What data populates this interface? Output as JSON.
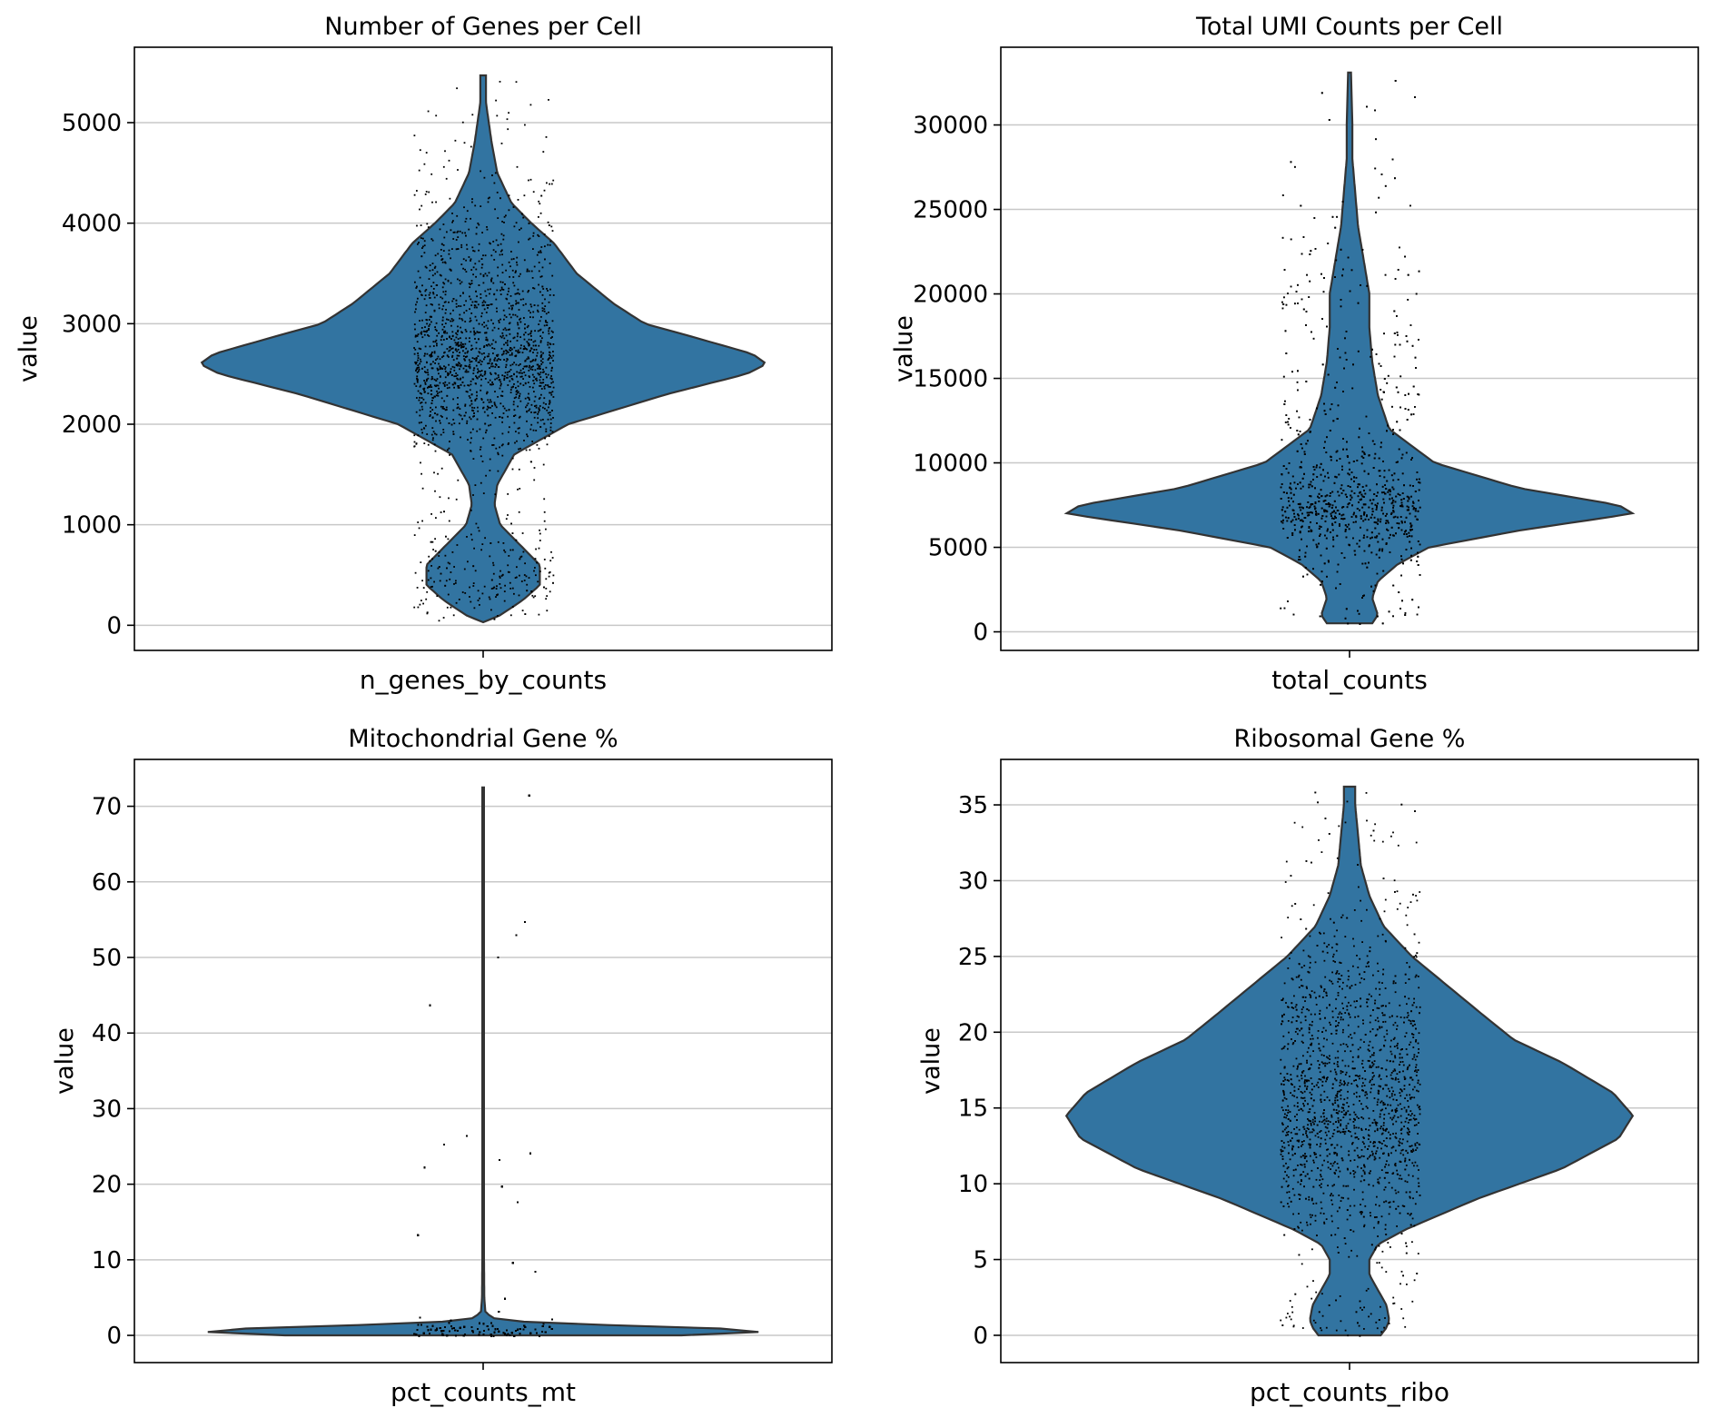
{
  "colors": {
    "violin_fill": "#3274a1",
    "violin_edge": "#333333",
    "points": "#000000",
    "grid": "#c8c8c8"
  },
  "chart_data": [
    {
      "type": "violin",
      "title": "Number of Genes per Cell",
      "xlabel": "n_genes_by_counts",
      "ylabel": "value",
      "ylim": [
        -250,
        5750
      ],
      "yticks": [
        0,
        1000,
        2000,
        3000,
        4000,
        5000
      ],
      "grid": "horizontal",
      "density": [
        [
          30,
          0
        ],
        [
          100,
          0.06
        ],
        [
          250,
          0.14
        ],
        [
          400,
          0.2
        ],
        [
          600,
          0.2
        ],
        [
          800,
          0.13
        ],
        [
          1000,
          0.06
        ],
        [
          1200,
          0.04
        ],
        [
          1400,
          0.05
        ],
        [
          1700,
          0.11
        ],
        [
          2000,
          0.3
        ],
        [
          2300,
          0.65
        ],
        [
          2500,
          0.93
        ],
        [
          2600,
          1.0
        ],
        [
          2700,
          0.95
        ],
        [
          2900,
          0.7
        ],
        [
          3000,
          0.57
        ],
        [
          3200,
          0.46
        ],
        [
          3500,
          0.33
        ],
        [
          3800,
          0.25
        ],
        [
          4000,
          0.17
        ],
        [
          4200,
          0.1
        ],
        [
          4500,
          0.05
        ],
        [
          4800,
          0.03
        ],
        [
          5000,
          0.02
        ],
        [
          5200,
          0.01
        ],
        [
          5470,
          0.01
        ]
      ],
      "points": {
        "n": 2000,
        "jitter_fraction": 0.2
      }
    },
    {
      "type": "violin",
      "title": "Total UMI Counts per Cell",
      "xlabel": "total_counts",
      "ylabel": "value",
      "ylim": [
        -1100,
        34600
      ],
      "yticks": [
        0,
        5000,
        10000,
        15000,
        20000,
        25000,
        30000
      ],
      "grid": "horizontal",
      "density": [
        [
          500,
          0.08
        ],
        [
          1000,
          0.1
        ],
        [
          2000,
          0.08
        ],
        [
          3000,
          0.1
        ],
        [
          4000,
          0.17
        ],
        [
          5000,
          0.28
        ],
        [
          6000,
          0.6
        ],
        [
          7000,
          1.0
        ],
        [
          7500,
          0.95
        ],
        [
          8500,
          0.6
        ],
        [
          10000,
          0.3
        ],
        [
          12000,
          0.14
        ],
        [
          14000,
          0.1
        ],
        [
          16000,
          0.08
        ],
        [
          18000,
          0.07
        ],
        [
          20000,
          0.07
        ],
        [
          22000,
          0.05
        ],
        [
          24000,
          0.03
        ],
        [
          26000,
          0.02
        ],
        [
          28000,
          0.01
        ],
        [
          30000,
          0.01
        ],
        [
          33100,
          0.005
        ]
      ],
      "points": {
        "n": 2000,
        "jitter_fraction": 0.2
      }
    },
    {
      "type": "violin",
      "title": "Mitochondrial Gene %",
      "xlabel": "pct_counts_mt",
      "ylabel": "value",
      "ylim": [
        -3.6,
        76.2
      ],
      "yticks": [
        0,
        10,
        20,
        30,
        40,
        50,
        60,
        70
      ],
      "grid": "horizontal",
      "density": [
        [
          0,
          0.7
        ],
        [
          0.5,
          1.0
        ],
        [
          1.0,
          0.8
        ],
        [
          1.5,
          0.3
        ],
        [
          2.0,
          0.05
        ],
        [
          3.0,
          0.008
        ],
        [
          5,
          0.004
        ],
        [
          10,
          0.003
        ],
        [
          30,
          0.003
        ],
        [
          72.5,
          0.003
        ]
      ],
      "points": {
        "n": 2000,
        "jitter_fraction": 0.2
      }
    },
    {
      "type": "violin",
      "title": "Ribosomal Gene %",
      "xlabel": "pct_counts_ribo",
      "ylabel": "value",
      "ylim": [
        -1.8,
        38.0
      ],
      "yticks": [
        0,
        5,
        10,
        15,
        20,
        25,
        30,
        35
      ],
      "grid": "horizontal",
      "density": [
        [
          0,
          0.11
        ],
        [
          0.5,
          0.13
        ],
        [
          1,
          0.14
        ],
        [
          2,
          0.13
        ],
        [
          3,
          0.1
        ],
        [
          4,
          0.07
        ],
        [
          5,
          0.07
        ],
        [
          6,
          0.1
        ],
        [
          7,
          0.2
        ],
        [
          9,
          0.45
        ],
        [
          11,
          0.75
        ],
        [
          13,
          0.95
        ],
        [
          14.5,
          1.0
        ],
        [
          16,
          0.93
        ],
        [
          18,
          0.75
        ],
        [
          19.5,
          0.58
        ],
        [
          21,
          0.48
        ],
        [
          23,
          0.35
        ],
        [
          25,
          0.22
        ],
        [
          27,
          0.12
        ],
        [
          29,
          0.07
        ],
        [
          31,
          0.04
        ],
        [
          33,
          0.03
        ],
        [
          35,
          0.02
        ],
        [
          36.2,
          0.02
        ]
      ],
      "points": {
        "n": 2000,
        "jitter_fraction": 0.2
      }
    }
  ]
}
